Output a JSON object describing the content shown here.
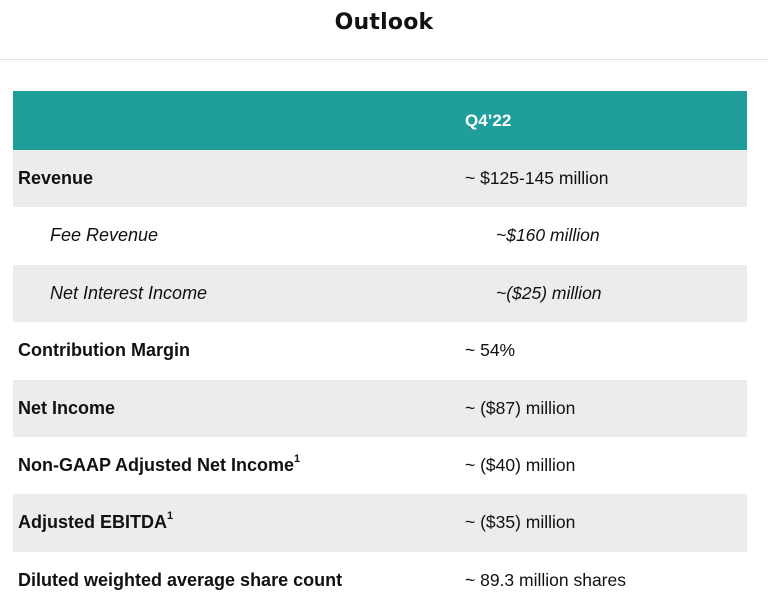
{
  "title": "Outlook",
  "table": {
    "column_header": "Q4’22",
    "rows": [
      {
        "label": "Revenue",
        "value": "~ $125-145 million"
      },
      {
        "label": "Fee Revenue",
        "value": "~$160 million"
      },
      {
        "label": "Net Interest Income",
        "value": "~($25) million"
      },
      {
        "label": "Contribution Margin",
        "value": "~ 54%"
      },
      {
        "label": "Net Income",
        "value": "~ ($87) million"
      },
      {
        "label": "Non-GAAP Adjusted Net Income",
        "footnote": "1",
        "value": "~ ($40) million"
      },
      {
        "label": "Adjusted EBITDA",
        "footnote": "1",
        "value": "~ ($35) million"
      },
      {
        "label": "Diluted weighted average share count",
        "value": "~ 89.3 million shares"
      }
    ]
  },
  "colors": {
    "header_bg": "#209e9b",
    "shaded_row_bg": "#ececec"
  }
}
